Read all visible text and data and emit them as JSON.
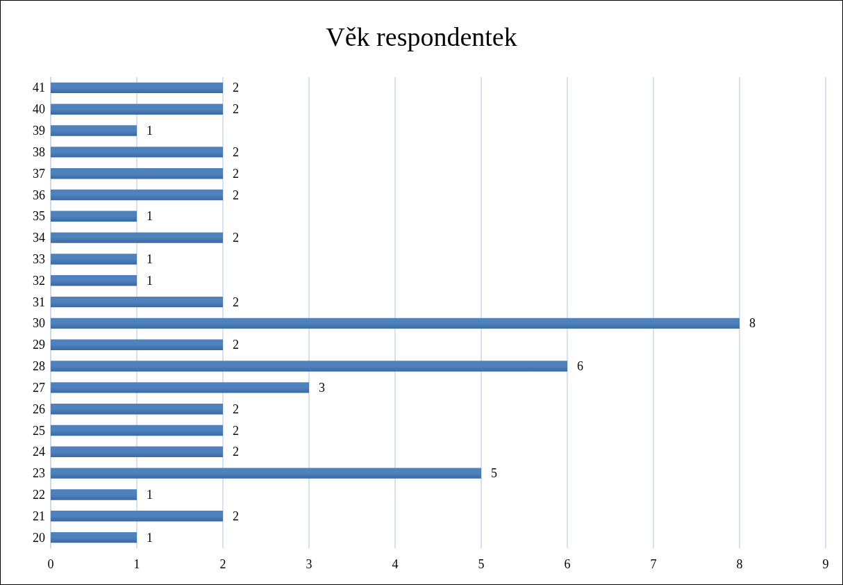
{
  "chart_data": {
    "type": "bar",
    "title": "Věk respondentek",
    "orientation": "horizontal",
    "categories": [
      "41",
      "40",
      "39",
      "38",
      "37",
      "36",
      "35",
      "34",
      "33",
      "32",
      "31",
      "30",
      "29",
      "28",
      "27",
      "26",
      "25",
      "24",
      "23",
      "22",
      "21",
      "20"
    ],
    "values": [
      2,
      2,
      1,
      2,
      2,
      2,
      1,
      2,
      1,
      1,
      2,
      8,
      2,
      6,
      3,
      2,
      2,
      2,
      5,
      1,
      2,
      1
    ],
    "color": "#4f81bd",
    "xlim": [
      0,
      9
    ],
    "xticks": [
      0,
      1,
      2,
      3,
      4,
      5,
      6,
      7,
      8,
      9
    ],
    "grid": "x",
    "data_labels": true
  }
}
